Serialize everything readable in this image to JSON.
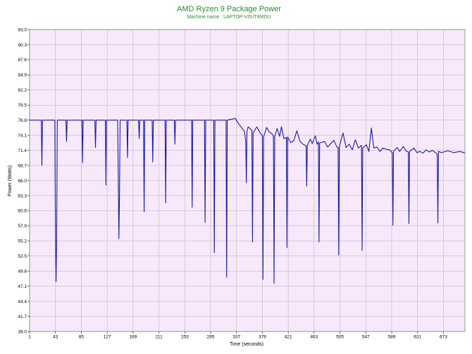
{
  "chart_data": {
    "type": "line",
    "title": "AMD Ryzen 9 Package Power",
    "subtitle": "Machine name : LAPTOP-V0UT8MDU",
    "xlabel": "Time (seconds)",
    "ylabel": "Power (Watts)",
    "xlim": [
      1,
      708
    ],
    "ylim": [
      39.0,
      93.0
    ],
    "x_ticks": [
      1,
      43,
      85,
      127,
      169,
      211,
      253,
      295,
      337,
      379,
      421,
      463,
      505,
      547,
      589,
      631,
      673
    ],
    "y_ticks": [
      "39.0",
      "41.7",
      "44.4",
      "47.1",
      "49.8",
      "52.5",
      "55.2",
      "57.9",
      "60.6",
      "63.3",
      "66.0",
      "68.7",
      "71.4",
      "74.1",
      "76.8",
      "79.5",
      "82.2",
      "84.9",
      "87.6",
      "90.3",
      "93.0"
    ],
    "grid": true,
    "colors": {
      "line": "#1a1aa6",
      "plot_bg": "#f7e9fb",
      "grid": "#b0b0b0",
      "title": "#2e8b2e"
    },
    "series": [
      {
        "name": "",
        "points": [
          [
            1,
            76.8
          ],
          [
            20,
            76.8
          ],
          [
            21,
            68.7
          ],
          [
            22,
            76.8
          ],
          [
            42,
            76.8
          ],
          [
            43,
            56.5
          ],
          [
            44,
            47.9
          ],
          [
            45,
            56.5
          ],
          [
            46,
            76.8
          ],
          [
            60,
            76.8
          ],
          [
            61,
            73.0
          ],
          [
            62,
            76.8
          ],
          [
            86,
            76.8
          ],
          [
            87,
            69.2
          ],
          [
            88,
            76.8
          ],
          [
            107,
            76.8
          ],
          [
            108,
            71.9
          ],
          [
            109,
            76.8
          ],
          [
            124,
            76.8
          ],
          [
            125,
            65.2
          ],
          [
            126,
            76.8
          ],
          [
            144,
            76.8
          ],
          [
            145,
            66.8
          ],
          [
            146,
            55.6
          ],
          [
            147,
            63.3
          ],
          [
            148,
            76.8
          ],
          [
            159,
            76.8
          ],
          [
            160,
            70.1
          ],
          [
            161,
            76.8
          ],
          [
            178,
            76.8
          ],
          [
            179,
            73.5
          ],
          [
            180,
            76.8
          ],
          [
            186,
            76.8
          ],
          [
            187,
            60.4
          ],
          [
            188,
            76.8
          ],
          [
            200,
            76.8
          ],
          [
            201,
            69.3
          ],
          [
            202,
            76.8
          ],
          [
            221,
            76.8
          ],
          [
            222,
            62.0
          ],
          [
            223,
            76.8
          ],
          [
            236,
            76.8
          ],
          [
            237,
            72.5
          ],
          [
            238,
            76.8
          ],
          [
            264,
            76.8
          ],
          [
            265,
            61.2
          ],
          [
            266,
            76.8
          ],
          [
            285,
            76.8
          ],
          [
            286,
            58.5
          ],
          [
            287,
            76.8
          ],
          [
            300,
            76.8
          ],
          [
            301,
            53.1
          ],
          [
            302,
            76.8
          ],
          [
            320,
            76.8
          ],
          [
            321,
            48.7
          ],
          [
            322,
            76.8
          ],
          [
            335,
            77.1
          ],
          [
            340,
            76.2
          ],
          [
            345,
            75.5
          ],
          [
            350,
            74.8
          ],
          [
            352,
            73.0
          ],
          [
            353,
            65.6
          ],
          [
            354,
            74.8
          ],
          [
            356,
            75.6
          ],
          [
            362,
            75.0
          ],
          [
            363,
            55.0
          ],
          [
            364,
            74.5
          ],
          [
            370,
            75.6
          ],
          [
            375,
            74.6
          ],
          [
            379,
            74.0
          ],
          [
            380,
            48.3
          ],
          [
            381,
            73.8
          ],
          [
            386,
            75.5
          ],
          [
            390,
            74.7
          ],
          [
            395,
            74.3
          ],
          [
            397,
            73.9
          ],
          [
            398,
            47.6
          ],
          [
            399,
            73.9
          ],
          [
            403,
            75.3
          ],
          [
            407,
            73.9
          ],
          [
            410,
            75.6
          ],
          [
            414,
            73.5
          ],
          [
            418,
            73.7
          ],
          [
            419,
            54.0
          ],
          [
            420,
            73.8
          ],
          [
            425,
            72.8
          ],
          [
            430,
            73.1
          ],
          [
            435,
            74.9
          ],
          [
            440,
            73.0
          ],
          [
            445,
            72.5
          ],
          [
            450,
            72.2
          ],
          [
            451,
            65.0
          ],
          [
            452,
            72.3
          ],
          [
            457,
            73.4
          ],
          [
            460,
            72.6
          ],
          [
            465,
            74.0
          ],
          [
            468,
            72.5
          ],
          [
            470,
            72.9
          ],
          [
            471,
            55.0
          ],
          [
            472,
            72.7
          ],
          [
            480,
            73.0
          ],
          [
            485,
            72.0
          ],
          [
            490,
            72.6
          ],
          [
            495,
            73.2
          ],
          [
            500,
            72.0
          ],
          [
            502,
            71.9
          ],
          [
            503,
            52.7
          ],
          [
            504,
            72.1
          ],
          [
            510,
            74.5
          ],
          [
            515,
            71.9
          ],
          [
            520,
            72.5
          ],
          [
            525,
            71.5
          ],
          [
            530,
            73.3
          ],
          [
            535,
            71.8
          ],
          [
            540,
            72.3
          ],
          [
            541,
            53.5
          ],
          [
            542,
            71.8
          ],
          [
            548,
            72.4
          ],
          [
            552,
            71.2
          ],
          [
            556,
            75.4
          ],
          [
            560,
            71.8
          ],
          [
            565,
            72.0
          ],
          [
            570,
            71.2
          ],
          [
            575,
            71.8
          ],
          [
            580,
            71.6
          ],
          [
            585,
            71.5
          ],
          [
            590,
            71.0
          ],
          [
            591,
            58.0
          ],
          [
            592,
            71.3
          ],
          [
            598,
            71.9
          ],
          [
            602,
            71.2
          ],
          [
            608,
            72.1
          ],
          [
            612,
            71.3
          ],
          [
            616,
            71.1
          ],
          [
            617,
            58.3
          ],
          [
            618,
            71.2
          ],
          [
            625,
            71.8
          ],
          [
            630,
            71.0
          ],
          [
            635,
            71.2
          ],
          [
            640,
            70.9
          ],
          [
            645,
            71.5
          ],
          [
            650,
            71.1
          ],
          [
            655,
            71.4
          ],
          [
            660,
            71.0
          ],
          [
            663,
            70.7
          ],
          [
            664,
            58.4
          ],
          [
            665,
            71.2
          ],
          [
            670,
            71.0
          ],
          [
            680,
            71.3
          ],
          [
            690,
            71.0
          ],
          [
            700,
            71.2
          ],
          [
            708,
            70.9
          ]
        ]
      }
    ]
  }
}
